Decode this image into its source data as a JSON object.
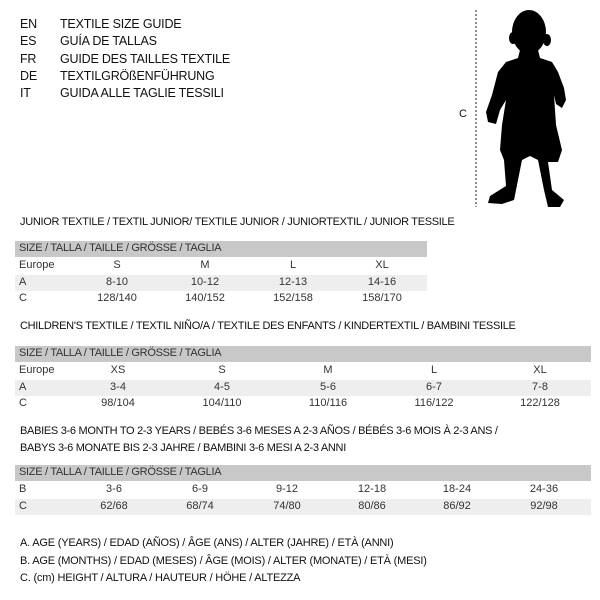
{
  "languages": [
    {
      "code": "EN",
      "text": "TEXTILE SIZE GUIDE"
    },
    {
      "code": "ES",
      "text": "GUÍA DE TALLAS"
    },
    {
      "code": "FR",
      "text": "GUIDE DES TAILLES TEXTILE"
    },
    {
      "code": "DE",
      "text": "TEXTILGRÖßENFÜHRUNG"
    },
    {
      "code": "IT",
      "text": "GUIDA ALLE TAGLIE TESSILI"
    }
  ],
  "figure": {
    "measure_label": "C",
    "icon": "child-silhouette"
  },
  "tables": [
    {
      "title": "JUNIOR TEXTILE / TEXTIL JUNIOR/ TEXTILE JUNIOR / JUNIORTEXTIL / JUNIOR TESSILE",
      "header": "SIZE / TALLA / TAILLE / GRÖSSE / TAGLIA",
      "rows": [
        {
          "label": "Europe",
          "cells": [
            "S",
            "M",
            "L",
            "XL"
          ]
        },
        {
          "label": "A",
          "cells": [
            "8-10",
            "10-12",
            "12-13",
            "14-16"
          ]
        },
        {
          "label": "C",
          "cells": [
            "128/140",
            "140/152",
            "152/158",
            "158/170"
          ]
        }
      ]
    },
    {
      "title": "CHILDREN'S TEXTILE / TEXTIL NIÑO/A / TEXTILE DES ENFANTS / KINDERTEXTIL / BAMBINI TESSILE",
      "header": "SIZE / TALLA / TAILLE / GRÖSSE / TAGLIA",
      "rows": [
        {
          "label": "Europe",
          "cells": [
            "XS",
            "S",
            "M",
            "L",
            "XL"
          ]
        },
        {
          "label": "A",
          "cells": [
            "3-4",
            "4-5",
            "5-6",
            "6-7",
            "7-8"
          ]
        },
        {
          "label": "C",
          "cells": [
            "98/104",
            "104/110",
            "110/116",
            "116/122",
            "122/128"
          ]
        }
      ]
    },
    {
      "title": "BABIES 3-6 MONTH TO 2-3 YEARS / BEBÉS 3-6 MESES A 2-3 AÑOS / BÉBÉS 3-6 MOIS À 2-3 ANS /",
      "title2": "BABYS 3-6 MONATE BIS 2-3 JAHRE / BAMBINI 3-6 MESI A 2-3 ANNI",
      "header": "SIZE / TALLA / TAILLE / GRÖSSE / TAGLIA",
      "rows": [
        {
          "label": "B",
          "cells": [
            "3-6",
            "6-9",
            "9-12",
            "12-18",
            "18-24",
            "24-36"
          ]
        },
        {
          "label": "C",
          "cells": [
            "62/68",
            "68/74",
            "74/80",
            "80/86",
            "86/92",
            "92/98"
          ]
        }
      ]
    }
  ],
  "legend": [
    "A. AGE (YEARS) / EDAD (AÑOS) / ÂGE (ANS) / ALTER (JAHRE) / ETÀ (ANNI)",
    "B. AGE (MONTHS) / EDAD (MESES) / ÂGE (MOIS) / ALTER (MONATE) / ETÀ (MESI)",
    "C. (cm) HEIGHT / ALTURA / HAUTEUR / HÖHE / ALTEZZA"
  ]
}
